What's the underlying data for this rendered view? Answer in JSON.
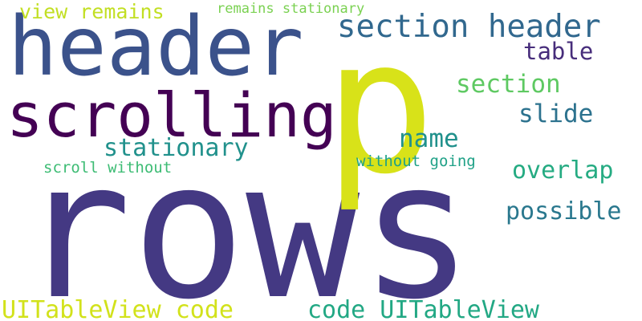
{
  "words": [
    {
      "text": "rows",
      "color": "#443983"
    },
    {
      "text": "p",
      "color": "#d8e219"
    },
    {
      "text": "header",
      "color": "#3b528b"
    },
    {
      "text": "scrolling",
      "color": "#440154"
    },
    {
      "text": "section header",
      "color": "#31688e"
    },
    {
      "text": "view remains",
      "color": "#c2df23"
    },
    {
      "text": "remains stationary",
      "color": "#7ad151"
    },
    {
      "text": "table",
      "color": "#472d7b"
    },
    {
      "text": "section",
      "color": "#5ec962"
    },
    {
      "text": "slide",
      "color": "#2c728e"
    },
    {
      "text": "name",
      "color": "#21918c"
    },
    {
      "text": "stationary",
      "color": "#21918c"
    },
    {
      "text": "without going",
      "color": "#1fa187"
    },
    {
      "text": "scroll without",
      "color": "#3dbc74"
    },
    {
      "text": "overlap",
      "color": "#25ab82"
    },
    {
      "text": "possible",
      "color": "#2a788e"
    },
    {
      "text": "UITableView code",
      "color": "#d2e21b"
    },
    {
      "text": "code UITableView",
      "color": "#22a884"
    }
  ]
}
